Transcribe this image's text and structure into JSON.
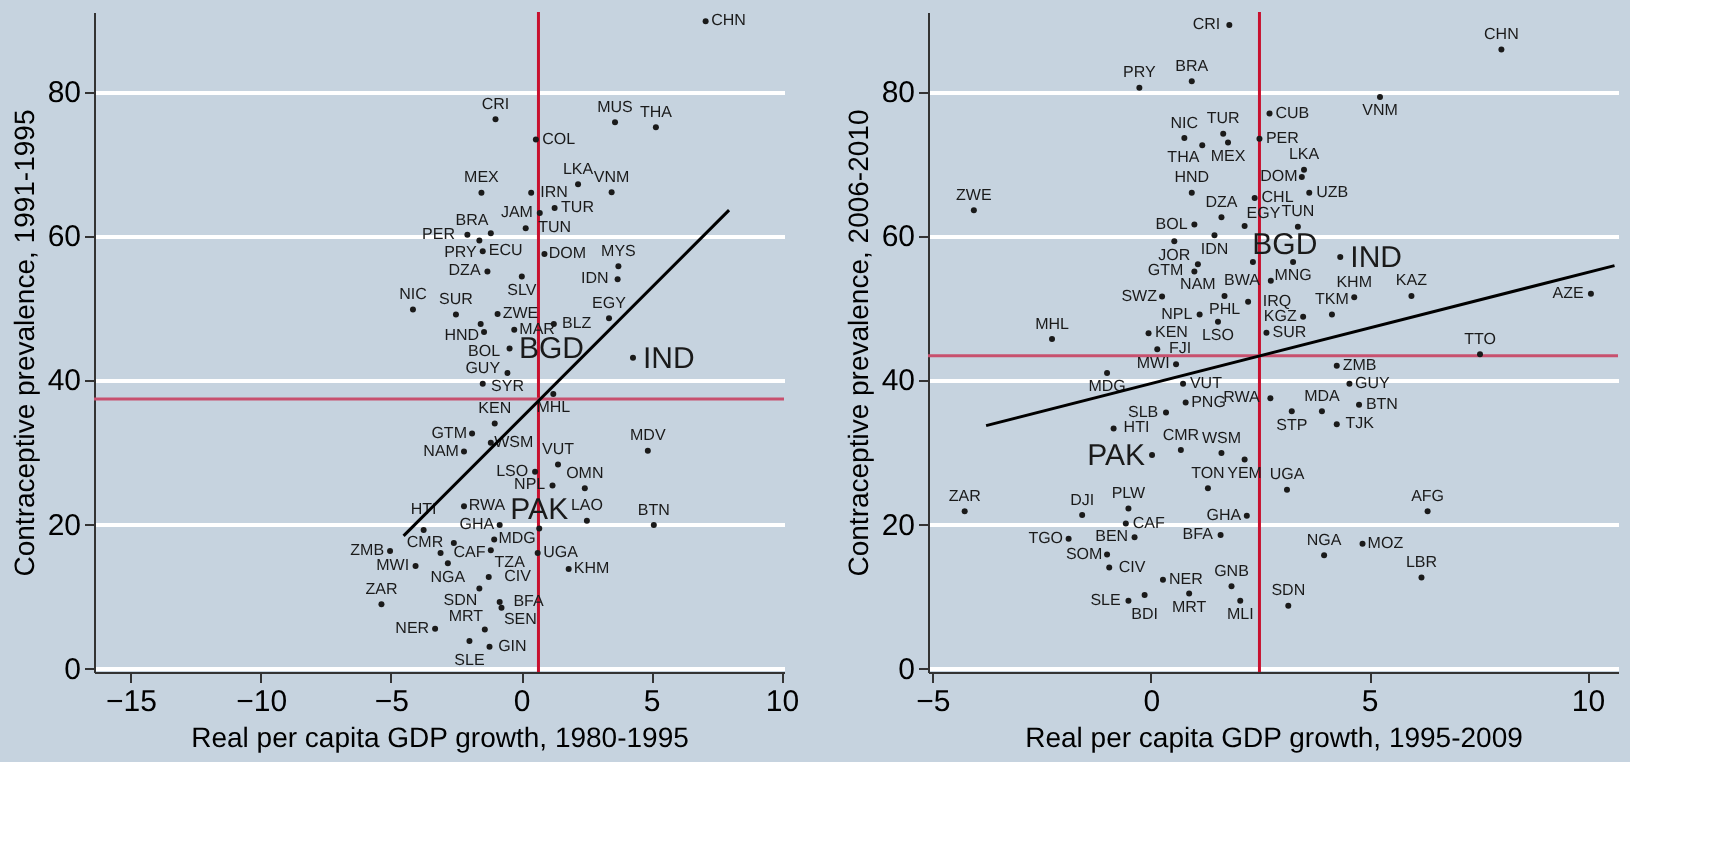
{
  "chart_data": [
    {
      "type": "scatter",
      "xlabel": "Real per capita GDP growth, 1980-1995",
      "ylabel": "Contraceptive prevalence, 1991-1995",
      "xlim": [
        -16.4,
        10.1
      ],
      "ylim": [
        -0.6,
        91
      ],
      "xticks": [
        -15,
        -10,
        -5,
        0,
        5,
        10
      ],
      "yticks": [
        0,
        20,
        40,
        60,
        80
      ],
      "grid": "y",
      "ref_lines": [
        {
          "axis": "x",
          "value": 0.67,
          "color": "#c8102e"
        },
        {
          "axis": "y",
          "value": 37.3,
          "color": "#c8506e"
        }
      ],
      "series": [
        {
          "color": "#1a1a1a",
          "marker": "circle",
          "x": [
            7.09,
            -0.98,
            0.57,
            3.61,
            5.18,
            -1.52,
            0.39,
            2.19,
            3.48,
            0.72,
            1.29,
            0.18,
            -2.06,
            -1.16,
            -1.6,
            -1.47,
            0.9,
            3.74,
            3.71,
            -1.29,
            0.03,
            -4.15,
            -2.5,
            -0.9,
            -1.55,
            -1.42,
            -0.26,
            1.26,
            3.38,
            -0.52,
            -1.47,
            1.24,
            -1.01,
            -1.88,
            -1.16,
            -2.19,
            4.87,
            1.42,
            0.54,
            1.21,
            2.45,
            -2.19,
            -0.82,
            2.53,
            5.1,
            -3.74,
            -5.03,
            -2.58,
            -1.03,
            -3.09,
            -1.16,
            0.64,
            -4.05,
            -2.81,
            1.83,
            -1.24,
            -1.6,
            -5.36,
            -0.82,
            -0.75,
            -3.3,
            -1.39,
            -1.98,
            -1.21
          ],
          "values": [
            89.7,
            76.1,
            73.3,
            75.7,
            75.0,
            65.9,
            65.9,
            67.1,
            66.0,
            63.1,
            63.8,
            61.0,
            60.1,
            60.3,
            59.3,
            57.8,
            57.4,
            55.7,
            53.9,
            55.0,
            54.3,
            49.7,
            49.0,
            49.1,
            47.7,
            46.6,
            46.9,
            47.7,
            48.5,
            40.9,
            39.4,
            38.0,
            33.9,
            32.5,
            31.2,
            30.0,
            30.1,
            28.2,
            27.2,
            25.3,
            24.9,
            22.4,
            19.8,
            20.4,
            19.8,
            19.1,
            16.2,
            17.3,
            17.8,
            15.9,
            16.3,
            15.9,
            14.1,
            14.5,
            13.7,
            12.6,
            11.0,
            8.8,
            9.1,
            8.3,
            5.4,
            5.3,
            3.7,
            2.9
          ],
          "value_labels": [
            "CHN",
            "CRI",
            "COL",
            "MUS",
            "THA",
            "MEX",
            "IRN",
            "LKA",
            "VNM",
            "JAM",
            "TUR",
            "TUN",
            "PER",
            "BRA",
            "PRY",
            "ECU",
            "DOM",
            "MYS",
            "IDN",
            "DZA",
            "SLV",
            "NIC",
            "SUR",
            "ZWE",
            "HND",
            "BOL",
            "MAR",
            "BLZ",
            "EGY",
            "SYR",
            "GUY",
            "MHL",
            "KEN",
            "GTM",
            "WSM",
            "NAM",
            "MDV",
            "VUT",
            "LSO",
            "NPL",
            "OMN",
            "RWA",
            "GHA",
            "LAO",
            "BTN",
            "HTI",
            "ZMB",
            "CMR",
            "MDG",
            "CAF",
            "TZA",
            "UGA",
            "MWI",
            "NGA",
            "KHM",
            "CIV",
            "SDN",
            "ZAR",
            "BFA",
            "SEN",
            "NER",
            "MRT",
            "SLE",
            "GIN"
          ]
        },
        {
          "color": "#1a1a1a",
          "marker": "circle",
          "x": [
            -0.44,
            4.3,
            0.7
          ],
          "values": [
            44.3,
            43.0,
            19.3
          ],
          "value_labels": [
            "BGD",
            "IND",
            "PAK"
          ]
        },
        {
          "type": "line",
          "color": "#000000",
          "marker": "none",
          "x": [
            -4.51,
            7.99
          ],
          "values": [
            18.3,
            63.5
          ]
        }
      ]
    },
    {
      "type": "scatter",
      "xlabel": "Real per capita GDP growth, 1995-2009",
      "ylabel": "Contraceptive prevalence, 2006-2010",
      "xlim": [
        -5.1,
        10.7
      ],
      "ylim": [
        -0.6,
        91
      ],
      "xticks": [
        -5,
        0,
        5,
        10
      ],
      "yticks": [
        0,
        20,
        40,
        60,
        80
      ],
      "grid": "y",
      "ref_lines": [
        {
          "axis": "x",
          "value": 2.49,
          "color": "#c8102e"
        },
        {
          "axis": "y",
          "value": 43.3,
          "color": "#c8506e"
        }
      ],
      "series": [
        {
          "color": "#1a1a1a",
          "marker": "circle",
          "x": [
            1.8,
            8.03,
            -0.26,
            0.94,
            5.25,
            2.72,
            0.77,
            1.66,
            1.18,
            1.77,
            2.49,
            3.51,
            3.46,
            3.63,
            0.94,
            2.38,
            -4.05,
            1.62,
            1.0,
            2.15,
            1.46,
            3.37,
            0.54,
            1.08,
            1.0,
            3.26,
            2.75,
            0.26,
            1.69,
            2.23,
            4.66,
            5.97,
            10.08,
            1.12,
            1.54,
            3.49,
            4.15,
            2.65,
            -0.05,
            -2.26,
            0.15,
            7.54,
            0.58,
            -1.0,
            4.26,
            0.74,
            4.55,
            2.74,
            0.8,
            4.77,
            0.35,
            3.23,
            3.92,
            4.26,
            -0.85,
            0.69,
            1.62,
            2.15,
            1.31,
            3.12,
            -4.26,
            -1.57,
            -0.51,
            -0.57,
            2.2,
            6.34,
            -1.88,
            -0.37,
            1.6,
            4.85,
            3.97,
            -1.0,
            -0.95,
            6.2,
            0.28,
            1.85,
            -0.14,
            0.88,
            -0.51,
            2.05,
            3.15
          ],
          "values": [
            89.2,
            85.8,
            80.5,
            81.4,
            79.2,
            76.9,
            73.5,
            74.1,
            72.5,
            72.9,
            73.4,
            69.1,
            68.1,
            65.9,
            65.9,
            65.2,
            63.5,
            62.5,
            61.5,
            61.3,
            60.0,
            61.2,
            59.2,
            56.0,
            55.0,
            56.3,
            53.7,
            51.5,
            51.6,
            50.8,
            51.4,
            51.6,
            51.9,
            49.0,
            48.0,
            48.7,
            49.0,
            46.5,
            46.4,
            45.6,
            44.2,
            43.5,
            42.1,
            40.9,
            41.9,
            39.4,
            39.4,
            37.4,
            36.8,
            36.5,
            35.4,
            35.6,
            35.6,
            33.8,
            33.2,
            30.2,
            29.8,
            28.9,
            24.9,
            24.7,
            21.7,
            21.2,
            22.1,
            20.0,
            21.1,
            21.7,
            17.9,
            18.1,
            18.4,
            17.2,
            15.6,
            15.7,
            13.9,
            12.5,
            12.2,
            11.3,
            10.1,
            10.3,
            9.3,
            9.3,
            8.6
          ],
          "value_labels": [
            "CRI",
            "CHN",
            "PRY",
            "BRA",
            "VNM",
            "CUB",
            "NIC",
            "TUR",
            "THA",
            "MEX",
            "PER",
            "LKA",
            "DOM",
            "UZB",
            "HND",
            "CHL",
            "ZWE",
            "DZA",
            "BOL",
            "EGY",
            "IDN",
            "TUN",
            "JOR",
            "NAM",
            "GTM",
            "MNG",
            "BWA",
            "SWZ",
            "PHL",
            "IRQ",
            "KHM",
            "KAZ",
            "AZE",
            "NPL",
            "LSO",
            "KGZ",
            "TKM",
            "SUR",
            "KEN",
            "MHL",
            "FJI",
            "TTO",
            "MWI",
            "MDG",
            "ZMB",
            "VUT",
            "GUY",
            "RWA",
            "PNG",
            "BTN",
            "SLB",
            "STP",
            "MDA",
            "TJK",
            "HTI",
            "CMR",
            "WSM",
            "YEM",
            "TON",
            "UGA",
            "ZAR",
            "DJI",
            "PLW",
            "CAF",
            "GHA",
            "AFG",
            "TGO",
            "BEN",
            "BFA",
            "MOZ",
            "NGA",
            "SOM",
            "CIV",
            "LBR",
            "NER",
            "GNB",
            "BDI",
            "MRT",
            "SLE",
            "MLI",
            "SDN"
          ]
        },
        {
          "color": "#1a1a1a",
          "marker": "circle",
          "x": [
            2.34,
            4.34,
            0.03
          ],
          "values": [
            56.3,
            57.0,
            29.5
          ],
          "value_labels": [
            "BGD",
            "IND",
            "PAK"
          ]
        },
        {
          "type": "line",
          "color": "#000000",
          "marker": "none",
          "x": [
            -3.77,
            10.62
          ],
          "values": [
            33.6,
            55.8
          ]
        }
      ]
    }
  ]
}
